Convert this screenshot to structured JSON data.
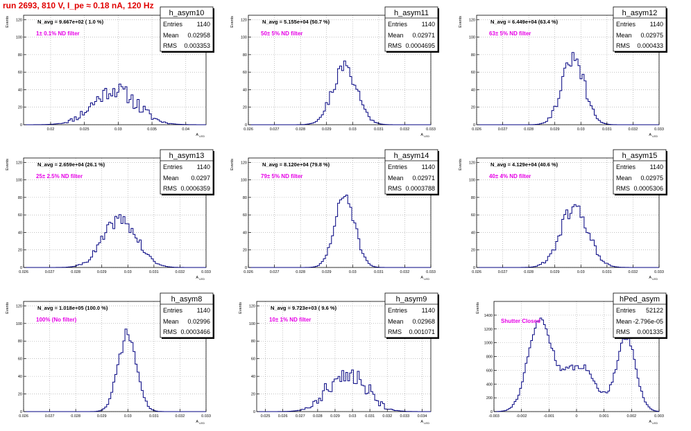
{
  "window": {
    "title": "run 2693,   810 V, I_pe ≈ 0.18 nA, 120 Hz"
  },
  "colors": {
    "histogram": "#000080",
    "annotation": "#e600e6",
    "title": "#e00000",
    "grid": "#9a9a9a"
  },
  "stats_labels": {
    "entries": "Entries",
    "mean": "Mean",
    "rms": "RMS"
  },
  "chart_data": [
    {
      "type": "histogram",
      "name": "h_asym10",
      "navg": "N_avg = 9.667e+02 ( 1.0 %)",
      "filter": "1± 0.1% ND filter",
      "entries": "1140",
      "mean": "0.02958",
      "rms": "0.003353",
      "ylabel": "Events",
      "xlabel": "A_LED",
      "xlim": [
        0.016,
        0.043
      ],
      "ylim": [
        0,
        125
      ],
      "xticks": [
        "0.02",
        "0.025",
        "0.03",
        "0.035",
        "0.04"
      ],
      "yticks": [
        "0",
        "20",
        "40",
        "60",
        "80",
        "100",
        "120"
      ],
      "shape": {
        "peaks": [
          [
            0.0295,
            40,
            0.0032
          ]
        ],
        "noise": 9,
        "seed": 11
      }
    },
    {
      "type": "histogram",
      "name": "h_asym11",
      "navg": "N_avg = 5.155e+04 (50.7 %)",
      "filter": "50± 5% ND filter",
      "entries": "1140",
      "mean": "0.02971",
      "rms": "0.0004695",
      "ylabel": "Events",
      "xlabel": "A_LED",
      "xlim": [
        0.026,
        0.033
      ],
      "ylim": [
        0,
        125
      ],
      "xticks": [
        "0.026",
        "0.027",
        "0.028",
        "0.029",
        "0.03",
        "0.031",
        "0.032",
        "0.033"
      ],
      "yticks": [
        "0",
        "20",
        "40",
        "60",
        "80",
        "100",
        "120"
      ],
      "shape": {
        "peaks": [
          [
            0.0297,
            66,
            0.00047
          ]
        ],
        "noise": 8,
        "seed": 21
      }
    },
    {
      "type": "histogram",
      "name": "h_asym12",
      "navg": "N_avg = 6.449e+04 (63.4 %)",
      "filter": "63± 5% ND filter",
      "entries": "1140",
      "mean": "0.02975",
      "rms": "0.000433",
      "ylabel": "Events",
      "xlabel": "A_LED",
      "xlim": [
        0.026,
        0.033
      ],
      "ylim": [
        0,
        125
      ],
      "xticks": [
        "0.026",
        "0.027",
        "0.028",
        "0.029",
        "0.03",
        "0.031",
        "0.032",
        "0.033"
      ],
      "yticks": [
        "0",
        "20",
        "40",
        "60",
        "80",
        "100",
        "120"
      ],
      "shape": {
        "peaks": [
          [
            0.0297,
            75,
            0.00043
          ]
        ],
        "noise": 8,
        "seed": 31
      }
    },
    {
      "type": "histogram",
      "name": "h_asym13",
      "navg": "N_avg = 2.659e+04 (26.1 %)",
      "filter": "25± 2.5% ND filter",
      "entries": "1140",
      "mean": "0.0297",
      "rms": "0.0006359",
      "ylabel": "Events",
      "xlabel": "A_LED",
      "xlim": [
        0.026,
        0.033
      ],
      "ylim": [
        0,
        125
      ],
      "xticks": [
        "0.026",
        "0.027",
        "0.028",
        "0.029",
        "0.03",
        "0.031",
        "0.032",
        "0.033"
      ],
      "yticks": [
        "0",
        "20",
        "40",
        "60",
        "80",
        "100",
        "120"
      ],
      "shape": {
        "peaks": [
          [
            0.0297,
            55,
            0.00064
          ]
        ],
        "noise": 7,
        "seed": 41
      }
    },
    {
      "type": "histogram",
      "name": "h_asym14",
      "navg": "N_avg = 8.120e+04 (79.8 %)",
      "filter": "79± 5% ND filter",
      "entries": "1140",
      "mean": "0.02971",
      "rms": "0.0003788",
      "ylabel": "Events",
      "xlabel": "A_LED",
      "xlim": [
        0.026,
        0.033
      ],
      "ylim": [
        0,
        125
      ],
      "xticks": [
        "0.026",
        "0.027",
        "0.028",
        "0.029",
        "0.03",
        "0.031",
        "0.032",
        "0.033"
      ],
      "yticks": [
        "0",
        "20",
        "40",
        "60",
        "80",
        "100",
        "120"
      ],
      "shape": {
        "peaks": [
          [
            0.0297,
            82,
            0.00038
          ]
        ],
        "noise": 7,
        "seed": 51
      }
    },
    {
      "type": "histogram",
      "name": "h_asym15",
      "navg": "N_avg = 4.129e+04 (40.6 %)",
      "filter": "40± 4% ND filter",
      "entries": "1140",
      "mean": "0.02975",
      "rms": "0.0005306",
      "ylabel": "Events",
      "xlabel": "A_LED",
      "xlim": [
        0.026,
        0.033
      ],
      "ylim": [
        0,
        125
      ],
      "xticks": [
        "0.026",
        "0.027",
        "0.028",
        "0.029",
        "0.03",
        "0.031",
        "0.032",
        "0.033"
      ],
      "yticks": [
        "0",
        "20",
        "40",
        "60",
        "80",
        "100",
        "120"
      ],
      "shape": {
        "peaks": [
          [
            0.02975,
            68,
            0.00053
          ]
        ],
        "noise": 8,
        "seed": 61
      }
    },
    {
      "type": "histogram",
      "name": "h_asym8",
      "navg": "N_avg = 1.018e+05 (100.0 %)",
      "filter": "100% (No filter)",
      "entries": "1140",
      "mean": "0.02996",
      "rms": "0.0003466",
      "ylabel": "Events",
      "xlabel": "A_LED",
      "xlim": [
        0.026,
        0.033
      ],
      "ylim": [
        0,
        125
      ],
      "xticks": [
        "0.026",
        "0.027",
        "0.028",
        "0.029",
        "0.03",
        "0.031",
        "0.032",
        "0.033"
      ],
      "yticks": [
        "0",
        "20",
        "40",
        "60",
        "80",
        "100",
        "120"
      ],
      "shape": {
        "peaks": [
          [
            0.02998,
            88,
            0.00035
          ]
        ],
        "noise": 7,
        "seed": 71
      }
    },
    {
      "type": "histogram",
      "name": "h_asym9",
      "navg": "N_avg = 9.723e+03 ( 9.6 %)",
      "filter": "10± 1% ND filter",
      "entries": "1140",
      "mean": "0.02968",
      "rms": "0.001071",
      "ylabel": "Events",
      "xlabel": "A_LED",
      "xlim": [
        0.0245,
        0.0345
      ],
      "ylim": [
        0,
        125
      ],
      "xticks": [
        "0.025",
        "0.026",
        "0.027",
        "0.028",
        "0.029",
        "0.03",
        "0.031",
        "0.032",
        "0.033",
        "0.034"
      ],
      "yticks": [
        "0",
        "20",
        "40",
        "60",
        "80",
        "100",
        "120"
      ],
      "shape": {
        "peaks": [
          [
            0.0297,
            44,
            0.00107
          ]
        ],
        "noise": 10,
        "seed": 81
      }
    },
    {
      "type": "histogram",
      "name": "hPed_asym",
      "navg": "",
      "filter": "Shutter Closed",
      "entries": "52122",
      "mean": "-2.796e-05",
      "rms": "0.001335",
      "ylabel": "Events",
      "xlabel": "A_LED",
      "xlim": [
        -0.003,
        0.003
      ],
      "ylim": [
        0,
        1600
      ],
      "xticks": [
        "-0.003",
        "-0.002",
        "-0.001",
        "0",
        "0.001",
        "0.002",
        "0.003"
      ],
      "yticks": [
        "0",
        "200",
        "400",
        "600",
        "800",
        "1000",
        "1200",
        "1400"
      ],
      "shape": {
        "peaks": [
          [
            -0.00135,
            1250,
            0.00042
          ],
          [
            -0.0003,
            350,
            0.0006
          ],
          [
            0.0003,
            420,
            0.0005
          ],
          [
            0.0018,
            1080,
            0.00035
          ]
        ],
        "noise": 50,
        "seed": 91
      }
    }
  ]
}
